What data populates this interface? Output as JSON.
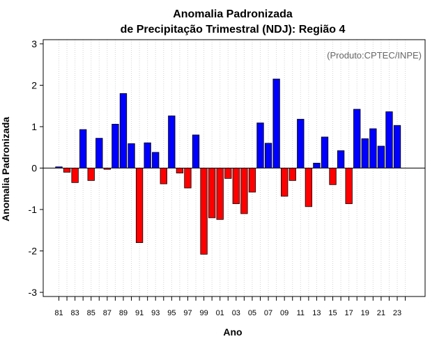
{
  "chart_data": {
    "type": "bar",
    "title": [
      "Anomalia Padronizada",
      "de Precipitação Trimestral (NDJ): Região 4"
    ],
    "annotation": "(Produto:CPTEC/INPE)",
    "xlabel": "Ano",
    "ylabel": "Anomalia Padronizada",
    "ylim": [
      -3.1,
      3.1
    ],
    "yticks": [
      "-3",
      "-2",
      "-1",
      "0",
      "1",
      "2",
      "3"
    ],
    "grid": "vertical dotted",
    "colors": {
      "positive": "#0000ff",
      "negative": "#ff0000",
      "outline": "#000000",
      "grid": "#d3d3d3"
    },
    "categories": [
      "1981",
      "1982",
      "1983",
      "1984",
      "1985",
      "1986",
      "1987",
      "1988",
      "1989",
      "1990",
      "1991",
      "1992",
      "1993",
      "1994",
      "1995",
      "1996",
      "1997",
      "1998",
      "1999",
      "2000",
      "2001",
      "2002",
      "2003",
      "2004",
      "2005",
      "2006",
      "2007",
      "2008",
      "2009",
      "2010",
      "2011",
      "2012",
      "2013",
      "2014",
      "2015",
      "2016",
      "2017",
      "2018",
      "2019",
      "2020",
      "2021",
      "2022",
      "2023"
    ],
    "xtick_labels": [
      "81",
      "",
      "83",
      "",
      "85",
      "",
      "87",
      "",
      "89",
      "",
      "91",
      "",
      "93",
      "",
      "95",
      "",
      "97",
      "",
      "99",
      "",
      "01",
      "",
      "03",
      "",
      "05",
      "",
      "07",
      "",
      "09",
      "",
      "11",
      "",
      "13",
      "",
      "15",
      "",
      "17",
      "",
      "19",
      "",
      "21",
      "",
      "23"
    ],
    "values": [
      0.03,
      -0.1,
      -0.35,
      0.93,
      -0.3,
      0.72,
      -0.03,
      1.06,
      1.8,
      0.59,
      -1.8,
      0.61,
      0.38,
      -0.38,
      1.26,
      -0.12,
      -0.48,
      0.8,
      -2.08,
      -1.2,
      -1.24,
      -0.25,
      -0.86,
      -1.1,
      -0.58,
      1.09,
      0.6,
      2.15,
      -0.68,
      -0.3,
      1.18,
      -0.93,
      0.12,
      0.75,
      -0.4,
      0.42,
      -0.86,
      1.42,
      0.71,
      0.95,
      0.53,
      1.36,
      1.03
    ]
  }
}
